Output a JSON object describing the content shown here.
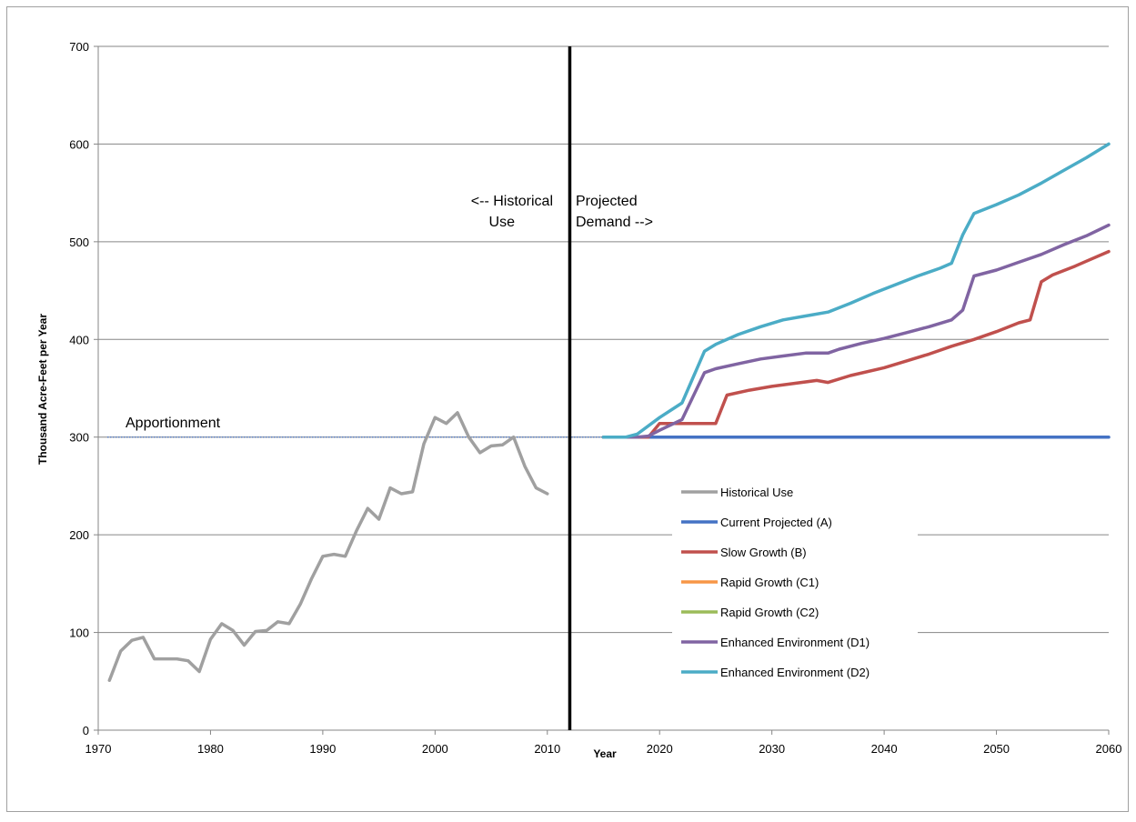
{
  "chart_data": {
    "type": "line",
    "title": "",
    "xlabel": "Year",
    "ylabel": "Thousand Acre-Feet per Year",
    "xlim": [
      1970,
      2060
    ],
    "ylim": [
      0,
      700
    ],
    "x_ticks": [
      "1970",
      "1980",
      "1990",
      "2000",
      "2010",
      "2020",
      "2030",
      "2040",
      "2050",
      "2060"
    ],
    "y_ticks": [
      "0",
      "100",
      "200",
      "300",
      "400",
      "500",
      "600",
      "700"
    ],
    "grid": "horizontal",
    "legend_position": "lower-right",
    "annotations": {
      "apportionment": "Apportionment",
      "historical_line1": "<-- Historical",
      "historical_line2": "Use",
      "projected_line1": "Projected",
      "projected_line2": "Demand -->"
    },
    "apportionment_value": 300,
    "divider_year": 2012,
    "series": [
      {
        "name": "Historical Use",
        "color": "#a0a0a0",
        "x": [
          1971,
          1972,
          1973,
          1974,
          1975,
          1976,
          1977,
          1978,
          1979,
          1980,
          1981,
          1982,
          1983,
          1984,
          1985,
          1986,
          1987,
          1988,
          1989,
          1990,
          1991,
          1992,
          1993,
          1994,
          1995,
          1996,
          1997,
          1998,
          1999,
          2000,
          2001,
          2002,
          2003,
          2004,
          2005,
          2006,
          2007,
          2008,
          2009,
          2010
        ],
        "values": [
          51,
          81,
          92,
          95,
          73,
          73,
          73,
          71,
          60,
          93,
          109,
          102,
          87,
          101,
          102,
          111,
          109,
          129,
          155,
          178,
          180,
          178,
          204,
          227,
          216,
          248,
          242,
          244,
          293,
          320,
          314,
          325,
          300,
          284,
          291,
          292,
          300,
          270,
          248,
          242
        ]
      },
      {
        "name": "Current Projected (A)",
        "color": "#4472c4",
        "x": [
          2015,
          2060
        ],
        "values": [
          300,
          300
        ]
      },
      {
        "name": "Slow Growth (B)",
        "color": "#c0504d",
        "x": [
          2015,
          2017,
          2018,
          2019,
          2020,
          2025,
          2026,
          2028,
          2030,
          2032,
          2034,
          2035,
          2037,
          2040,
          2042,
          2044,
          2046,
          2048,
          2050,
          2052,
          2053,
          2054,
          2055,
          2057,
          2058,
          2060
        ],
        "values": [
          300,
          300,
          300,
          300,
          314,
          314,
          343,
          348,
          352,
          355,
          358,
          356,
          363,
          371,
          378,
          385,
          393,
          400,
          408,
          417,
          420,
          459,
          466,
          475,
          480,
          490
        ]
      },
      {
        "name": "Rapid Growth (C1)",
        "color": "#f79646",
        "x": [
          2015,
          2017
        ],
        "values": [
          300,
          300
        ]
      },
      {
        "name": "Rapid Growth (C2)",
        "color": "#9bbb59",
        "x": [
          2015,
          2017
        ],
        "values": [
          300,
          300
        ]
      },
      {
        "name": "Enhanced Environment (D1)",
        "color": "#8064a2",
        "x": [
          2015,
          2017,
          2018,
          2019,
          2020,
          2022,
          2024,
          2025,
          2027,
          2029,
          2031,
          2033,
          2035,
          2036,
          2038,
          2040,
          2042,
          2044,
          2046,
          2047,
          2048,
          2050,
          2052,
          2054,
          2056,
          2058,
          2060
        ],
        "values": [
          300,
          300,
          300,
          301,
          307,
          318,
          366,
          370,
          375,
          380,
          383,
          386,
          386,
          390,
          396,
          401,
          407,
          413,
          420,
          430,
          465,
          471,
          479,
          487,
          497,
          506,
          517
        ]
      },
      {
        "name": "Enhanced Environment (D2)",
        "color": "#4bacc6",
        "x": [
          2015,
          2017,
          2018,
          2020,
          2022,
          2024,
          2025,
          2027,
          2029,
          2031,
          2033,
          2035,
          2037,
          2039,
          2041,
          2043,
          2045,
          2046,
          2047,
          2048,
          2050,
          2052,
          2054,
          2056,
          2058,
          2060
        ],
        "values": [
          300,
          300,
          303,
          320,
          335,
          388,
          395,
          405,
          413,
          420,
          424,
          428,
          437,
          447,
          456,
          465,
          473,
          478,
          507,
          529,
          538,
          548,
          560,
          573,
          586,
          600
        ]
      }
    ]
  }
}
